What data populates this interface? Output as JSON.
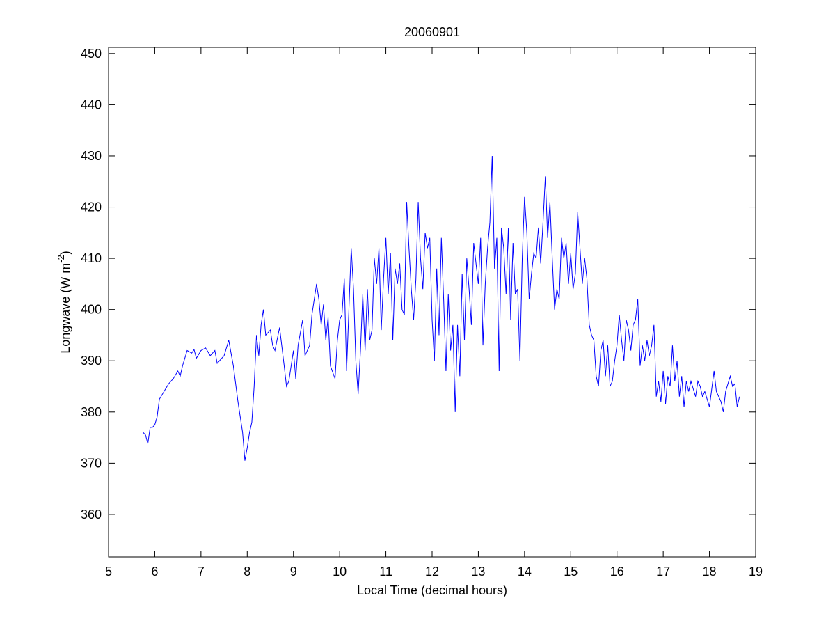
{
  "chart_data": {
    "type": "line",
    "title": "20060901",
    "xlabel": "Local Time (decimal hours)",
    "ylabel": [
      "Longwave (W m",
      "-2",
      ")"
    ],
    "x": [
      5.75,
      5.8,
      5.85,
      5.9,
      5.95,
      6.0,
      6.05,
      6.1,
      6.2,
      6.3,
      6.4,
      6.5,
      6.55,
      6.6,
      6.7,
      6.8,
      6.85,
      6.9,
      7.0,
      7.1,
      7.2,
      7.3,
      7.35,
      7.4,
      7.5,
      7.6,
      7.7,
      7.8,
      7.9,
      7.95,
      8.0,
      8.05,
      8.1,
      8.15,
      8.2,
      8.25,
      8.3,
      8.35,
      8.4,
      8.5,
      8.55,
      8.6,
      8.7,
      8.8,
      8.85,
      8.9,
      9.0,
      9.05,
      9.1,
      9.2,
      9.25,
      9.35,
      9.4,
      9.5,
      9.55,
      9.6,
      9.65,
      9.7,
      9.75,
      9.8,
      9.9,
      9.95,
      10.0,
      10.05,
      10.1,
      10.15,
      10.2,
      10.25,
      10.3,
      10.35,
      10.4,
      10.45,
      10.5,
      10.55,
      10.6,
      10.65,
      10.7,
      10.75,
      10.8,
      10.85,
      10.9,
      10.95,
      11.0,
      11.05,
      11.1,
      11.15,
      11.2,
      11.25,
      11.3,
      11.35,
      11.4,
      11.45,
      11.5,
      11.55,
      11.6,
      11.65,
      11.7,
      11.75,
      11.8,
      11.85,
      11.9,
      11.95,
      12.0,
      12.05,
      12.1,
      12.15,
      12.2,
      12.25,
      12.3,
      12.35,
      12.4,
      12.45,
      12.5,
      12.55,
      12.6,
      12.65,
      12.7,
      12.75,
      12.8,
      12.85,
      12.9,
      13.0,
      13.05,
      13.1,
      13.15,
      13.2,
      13.25,
      13.3,
      13.35,
      13.4,
      13.45,
      13.5,
      13.55,
      13.6,
      13.65,
      13.7,
      13.75,
      13.8,
      13.85,
      13.9,
      13.95,
      14.0,
      14.05,
      14.1,
      14.15,
      14.2,
      14.25,
      14.3,
      14.35,
      14.4,
      14.45,
      14.5,
      14.55,
      14.6,
      14.65,
      14.7,
      14.75,
      14.8,
      14.85,
      14.9,
      14.95,
      15.0,
      15.05,
      15.1,
      15.15,
      15.2,
      15.25,
      15.3,
      15.35,
      15.4,
      15.45,
      15.5,
      15.55,
      15.6,
      15.65,
      15.7,
      15.75,
      15.8,
      15.85,
      15.9,
      15.95,
      16.0,
      16.05,
      16.1,
      16.15,
      16.2,
      16.25,
      16.3,
      16.35,
      16.4,
      16.45,
      16.5,
      16.55,
      16.6,
      16.65,
      16.7,
      16.75,
      16.8,
      16.85,
      16.9,
      16.95,
      17.0,
      17.05,
      17.1,
      17.15,
      17.2,
      17.25,
      17.3,
      17.35,
      17.4,
      17.45,
      17.5,
      17.55,
      17.6,
      17.7,
      17.75,
      17.8,
      17.85,
      17.9,
      18.0,
      18.1,
      18.15,
      18.2,
      18.25,
      18.3,
      18.35,
      18.45,
      18.5,
      18.55,
      18.6,
      18.65
    ],
    "series": [
      {
        "color": "#0000ff",
        "values": [
          376,
          375.5,
          373.8,
          377,
          377,
          377.5,
          379,
          382.5,
          384,
          385.5,
          386.5,
          388,
          387,
          389,
          392,
          391.5,
          392.2,
          390.5,
          392,
          392.5,
          391,
          392,
          389.5,
          390,
          391,
          394,
          389,
          382,
          376,
          370.5,
          373,
          376,
          378,
          385,
          395,
          391,
          397,
          400,
          395,
          396,
          393,
          392,
          396.5,
          389,
          385,
          386,
          392,
          386.5,
          393,
          398,
          391,
          393,
          399,
          405,
          402,
          397,
          401,
          394,
          398.5,
          389,
          386.5,
          394,
          398,
          399,
          406,
          388,
          400,
          412,
          404,
          390,
          383.5,
          392,
          403,
          392,
          404,
          394,
          396,
          410,
          405,
          412,
          396,
          406,
          414,
          403,
          411,
          394,
          408,
          405,
          409,
          400,
          399,
          421,
          412,
          404,
          398,
          406,
          421,
          410,
          404,
          415,
          412,
          414,
          398,
          390,
          408,
          395,
          414,
          402,
          388,
          403,
          392,
          397,
          380,
          397,
          387,
          407,
          394,
          410,
          404,
          397,
          413,
          405,
          414,
          393,
          405,
          412,
          417,
          430,
          408,
          414,
          388,
          416,
          412,
          403,
          416,
          398,
          413,
          403,
          404,
          390,
          410,
          422,
          415,
          402,
          407,
          411,
          410,
          416,
          409,
          417,
          426,
          414,
          421,
          410,
          400,
          404,
          402,
          414,
          410,
          413,
          405,
          411,
          404,
          407,
          419,
          412,
          405,
          410,
          406,
          397,
          395,
          394,
          387,
          385,
          392,
          394,
          387,
          393,
          385,
          386,
          390,
          393,
          399,
          394,
          390,
          398,
          396,
          392,
          397,
          398,
          402,
          389,
          393,
          390,
          394,
          391,
          393,
          397,
          383,
          386,
          382,
          388,
          381.5,
          387,
          385,
          393,
          386,
          390,
          383,
          387,
          381,
          386,
          384,
          386,
          383,
          386,
          385,
          383,
          384,
          381,
          388,
          384,
          383,
          382,
          380,
          384,
          387,
          385,
          385.5,
          381,
          383
        ]
      }
    ],
    "xlim": [
      5,
      19
    ],
    "xticks": [
      5,
      6,
      7,
      8,
      9,
      10,
      11,
      12,
      13,
      14,
      15,
      16,
      17,
      18,
      19
    ],
    "ylim": [
      351.7,
      451.2
    ],
    "yticks": [
      360,
      370,
      380,
      390,
      400,
      410,
      420,
      430,
      440,
      450
    ]
  }
}
